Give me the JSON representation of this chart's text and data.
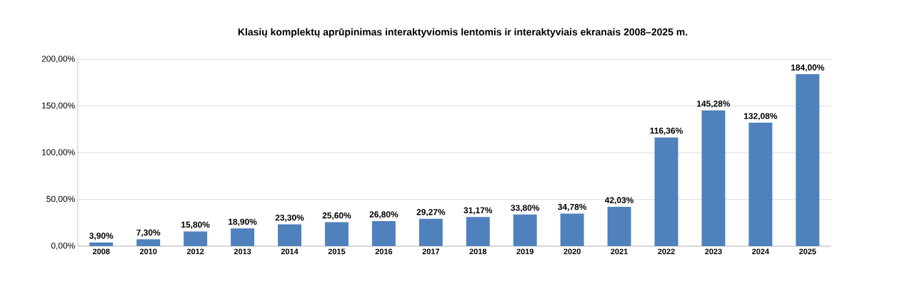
{
  "chart_data": {
    "type": "bar",
    "title": "Klasių komplektų aprūpinimas  interaktyviomis lentomis ir interaktyviais ekranais 2008–2025 m.",
    "categories": [
      "2008",
      "2010",
      "2012",
      "2013",
      "2014",
      "2015",
      "2016",
      "2017",
      "2018",
      "2019",
      "2020",
      "2021",
      "2022",
      "2023",
      "2024",
      "2025"
    ],
    "values": [
      3.9,
      7.3,
      15.8,
      18.9,
      23.3,
      25.6,
      26.8,
      29.27,
      31.17,
      33.8,
      34.78,
      42.03,
      116.36,
      145.28,
      132.08,
      184.0
    ],
    "value_labels": [
      "3,90%",
      "7,30%",
      "15,80%",
      "18,90%",
      "23,30%",
      "25,60%",
      "26,80%",
      "29,27%",
      "31,17%",
      "33,80%",
      "34,78%",
      "42,03%",
      "116,36%",
      "145,28%",
      "132,08%",
      "184,00%"
    ],
    "color": "#4f81bd",
    "ylim": [
      0,
      200
    ],
    "yticks": [
      {
        "value": 0,
        "label": "0,00%"
      },
      {
        "value": 50,
        "label": "50,00%"
      },
      {
        "value": 100,
        "label": "100,00%"
      },
      {
        "value": 150,
        "label": "150,00%"
      },
      {
        "value": 200,
        "label": "200,00%"
      }
    ],
    "grid": "y"
  }
}
